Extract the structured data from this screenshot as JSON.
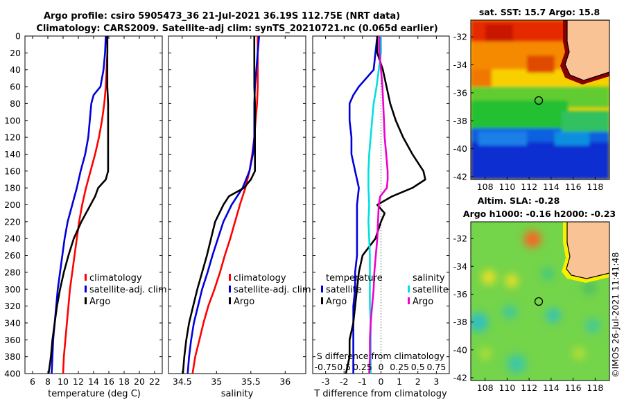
{
  "title": {
    "line1": "Argo profile: csiro 5905473_36 21-Jul-2021 36.19S 112.75E (NRT data)",
    "line2": "Climatology: CARS2009. Satellite-adj clim: synTS_20210721.nc (0.065d earlier)"
  },
  "chart_data": [
    {
      "type": "line",
      "id": "temperature",
      "xlabel": "temperature (deg C)",
      "ylabel": "",
      "xlim": [
        5,
        23
      ],
      "ylim": [
        400,
        0
      ],
      "xticks": [
        "6",
        "8",
        "10",
        "12",
        "14",
        "16",
        "18",
        "20",
        "22"
      ],
      "yticks": [
        "0",
        "20",
        "40",
        "60",
        "80",
        "100",
        "120",
        "140",
        "160",
        "180",
        "200",
        "220",
        "240",
        "260",
        "280",
        "300",
        "320",
        "340",
        "360",
        "380",
        "400"
      ],
      "legend": [
        "climatology",
        "satellite-adj. clim",
        "Argo"
      ],
      "series": [
        {
          "name": "climatology",
          "color": "#ff0000",
          "depth": [
            0,
            20,
            40,
            60,
            80,
            100,
            120,
            140,
            160,
            180,
            200,
            220,
            240,
            260,
            280,
            300,
            320,
            340,
            360,
            380,
            400
          ],
          "values": [
            15.8,
            15.8,
            15.7,
            15.6,
            15.4,
            15.1,
            14.7,
            14.2,
            13.6,
            13.0,
            12.5,
            12.1,
            11.8,
            11.5,
            11.2,
            10.9,
            10.7,
            10.5,
            10.3,
            10.1,
            10.0
          ]
        },
        {
          "name": "satellite-adj. clim",
          "color": "#0000dd",
          "depth": [
            0,
            20,
            40,
            60,
            70,
            80,
            100,
            120,
            140,
            160,
            180,
            200,
            220,
            240,
            260,
            280,
            300,
            320,
            340,
            360,
            380,
            400
          ],
          "values": [
            15.6,
            15.5,
            15.3,
            14.9,
            14.0,
            13.7,
            13.5,
            13.3,
            12.9,
            12.3,
            11.8,
            11.2,
            10.6,
            10.2,
            9.9,
            9.6,
            9.3,
            9.1,
            8.9,
            8.7,
            8.6,
            8.5
          ]
        },
        {
          "name": "Argo",
          "color": "#000000",
          "depth": [
            0,
            20,
            40,
            60,
            80,
            100,
            120,
            140,
            160,
            170,
            180,
            190,
            200,
            220,
            240,
            260,
            280,
            300,
            320,
            340,
            360,
            380,
            400
          ],
          "values": [
            15.8,
            15.8,
            15.8,
            15.8,
            15.9,
            15.9,
            15.9,
            15.9,
            15.9,
            15.6,
            14.6,
            14.2,
            13.6,
            12.4,
            11.4,
            10.7,
            10.1,
            9.6,
            9.2,
            8.9,
            8.6,
            8.4,
            8.1
          ]
        }
      ]
    },
    {
      "type": "line",
      "id": "salinity",
      "xlabel": "salinity",
      "xlim": [
        34.3,
        36.3
      ],
      "ylim": [
        400,
        0
      ],
      "xticks": [
        "34.5",
        "35",
        "35.5",
        "36"
      ],
      "legend": [
        "climatology",
        "satellite-adj. clim",
        "Argo"
      ],
      "series": [
        {
          "name": "climatology",
          "color": "#ff0000",
          "depth": [
            0,
            20,
            40,
            60,
            80,
            100,
            120,
            140,
            160,
            180,
            200,
            220,
            240,
            260,
            280,
            300,
            320,
            340,
            360,
            380,
            400
          ],
          "values": [
            35.6,
            35.6,
            35.6,
            35.6,
            35.59,
            35.57,
            35.55,
            35.52,
            35.48,
            35.42,
            35.34,
            35.27,
            35.2,
            35.12,
            35.05,
            34.97,
            34.88,
            34.81,
            34.75,
            34.69,
            34.65
          ]
        },
        {
          "name": "satellite-adj. clim",
          "color": "#0000dd",
          "depth": [
            0,
            20,
            40,
            60,
            80,
            100,
            120,
            140,
            160,
            180,
            200,
            220,
            240,
            260,
            280,
            300,
            320,
            340,
            360,
            380,
            400
          ],
          "values": [
            35.62,
            35.6,
            35.58,
            35.56,
            35.55,
            35.55,
            35.55,
            35.53,
            35.48,
            35.38,
            35.22,
            35.1,
            35.02,
            34.94,
            34.87,
            34.79,
            34.73,
            34.67,
            34.63,
            34.6,
            34.58
          ]
        },
        {
          "name": "Argo",
          "color": "#000000",
          "depth": [
            0,
            20,
            40,
            60,
            80,
            100,
            120,
            140,
            160,
            170,
            180,
            190,
            200,
            220,
            240,
            260,
            280,
            300,
            320,
            340,
            360,
            380,
            400
          ],
          "values": [
            35.55,
            35.55,
            35.55,
            35.55,
            35.56,
            35.56,
            35.56,
            35.56,
            35.56,
            35.5,
            35.4,
            35.18,
            35.1,
            34.98,
            34.92,
            34.86,
            34.79,
            34.72,
            34.66,
            34.6,
            34.56,
            34.53,
            34.51
          ]
        }
      ]
    },
    {
      "type": "line",
      "id": "difference",
      "xlabel": "T difference from climatology",
      "top_xlabel": "S difference from climatology",
      "xlim": [
        -3.7,
        3.7
      ],
      "ylim": [
        400,
        0
      ],
      "xticks": [
        "-3",
        "-2",
        "-1",
        "0",
        "1",
        "2",
        "3"
      ],
      "top_xticks": [
        "-0.75",
        "0.5",
        "0.25",
        "0",
        "0.25",
        "0.5",
        "0.75"
      ],
      "legend_temperature_title": "temperature",
      "legend_salinity_title": "salinity",
      "legend": [
        "satellite",
        "Argo",
        "satellite",
        "Argo"
      ],
      "series": [
        {
          "name": "temperature satellite",
          "color": "#0000dd",
          "depth": [
            0,
            20,
            40,
            60,
            70,
            80,
            100,
            120,
            140,
            160,
            180,
            200,
            220,
            240,
            260,
            280,
            300,
            320,
            340,
            360,
            380,
            400
          ],
          "values": [
            -0.2,
            -0.3,
            -0.4,
            -1.2,
            -1.5,
            -1.7,
            -1.7,
            -1.6,
            -1.6,
            -1.4,
            -1.2,
            -1.3,
            -1.3,
            -1.3,
            -1.3,
            -1.4,
            -1.4,
            -1.5,
            -1.5,
            -1.5,
            -1.5,
            -1.5
          ]
        },
        {
          "name": "temperature Argo",
          "color": "#000000",
          "depth": [
            0,
            20,
            40,
            60,
            80,
            100,
            120,
            140,
            160,
            170,
            180,
            190,
            200,
            210,
            220,
            240,
            260,
            280,
            300,
            320,
            340,
            360,
            380,
            400
          ],
          "values": [
            -0.2,
            -0.2,
            0.1,
            0.3,
            0.5,
            0.8,
            1.2,
            1.7,
            2.3,
            2.4,
            1.7,
            0.6,
            -0.2,
            0.2,
            0.0,
            -0.3,
            -1.0,
            -1.2,
            -1.3,
            -1.4,
            -1.5,
            -1.7,
            -1.7,
            -1.9
          ]
        },
        {
          "name": "salinity satellite",
          "color": "#00e0e0",
          "depth": [
            0,
            20,
            40,
            60,
            80,
            100,
            120,
            140,
            160,
            180,
            200,
            220,
            240,
            260,
            280,
            300,
            320,
            340,
            360,
            380,
            400
          ],
          "values": [
            0.0,
            0.0,
            -0.03,
            -0.06,
            -0.1,
            -0.12,
            -0.14,
            -0.16,
            -0.17,
            -0.17,
            -0.16,
            -0.17,
            -0.16,
            -0.15,
            -0.15,
            -0.15,
            -0.15,
            -0.14,
            -0.14,
            -0.14,
            -0.14
          ]
        },
        {
          "name": "salinity Argo",
          "color": "#ee00cc",
          "depth": [
            0,
            20,
            40,
            60,
            80,
            100,
            120,
            140,
            160,
            170,
            180,
            190,
            200,
            220,
            240,
            260,
            280,
            300,
            320,
            340,
            360,
            380,
            400
          ],
          "values": [
            -0.02,
            -0.02,
            0.0,
            0.02,
            0.03,
            0.04,
            0.05,
            0.07,
            0.09,
            0.09,
            0.08,
            -0.01,
            -0.03,
            -0.04,
            -0.05,
            -0.07,
            -0.09,
            -0.1,
            -0.12,
            -0.14,
            -0.15,
            -0.15,
            -0.16
          ]
        }
      ]
    }
  ],
  "map_top": {
    "title": "sat. SST: 15.7 Argo: 15.8",
    "yticks": [
      "-32",
      "-34",
      "-36",
      "-38",
      "-40",
      "-42"
    ],
    "xticks": [
      "108",
      "110",
      "112",
      "114",
      "116",
      "118"
    ]
  },
  "map_bottom": {
    "title1": "Altim. SLA: -0.28",
    "title2": "Argo h1000: -0.16 h2000: -0.23",
    "yticks": [
      "-32",
      "-34",
      "-36",
      "-38",
      "-40",
      "-42"
    ],
    "xticks": [
      "108",
      "110",
      "112",
      "114",
      "116",
      "118"
    ]
  },
  "watermark": "©IMOS 26-Jul-2021 11:41:48",
  "colors": {
    "clim": "#ff0000",
    "sat": "#0000dd",
    "argo": "#000000",
    "cyan": "#00e0e0",
    "magenta": "#ee00cc",
    "land": "#f9c395"
  }
}
